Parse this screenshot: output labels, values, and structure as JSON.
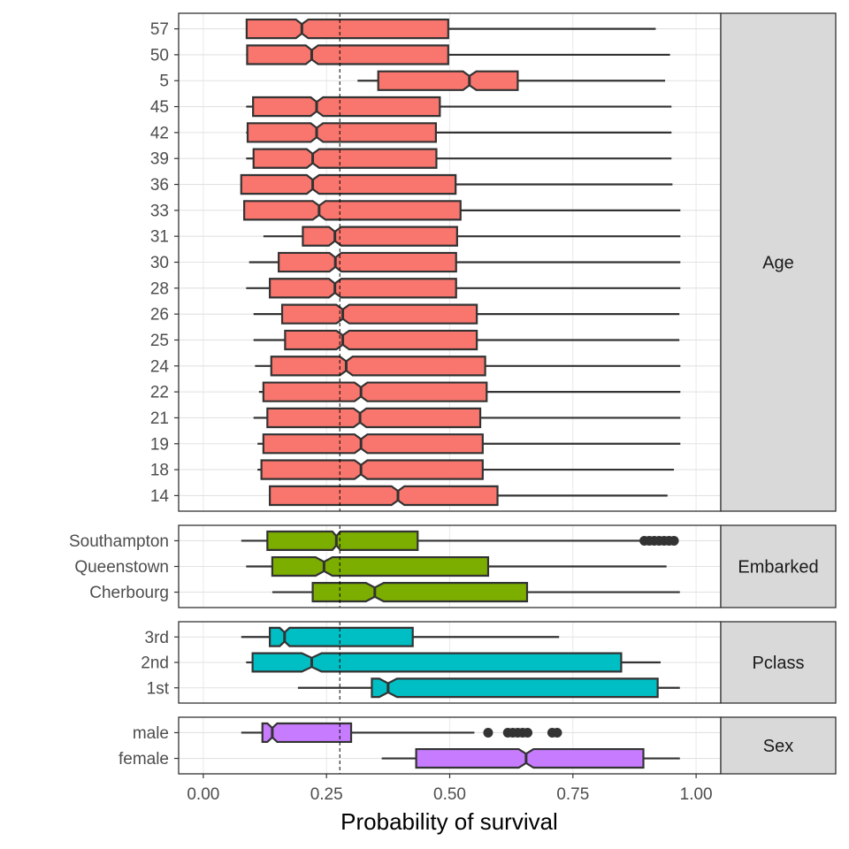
{
  "chart_data": {
    "type": "boxplot",
    "xlabel": "Probability of survival",
    "xlim": [
      -0.05,
      1.05
    ],
    "x_ticks": [
      0,
      0.25,
      0.5,
      0.75,
      1
    ],
    "x_tick_labels": [
      "0.00",
      "0.25",
      "0.50",
      "0.75",
      "1.00"
    ],
    "reference_line": 0.277,
    "grid": "major",
    "legend": "none",
    "notched": true,
    "facets": [
      {
        "label": "Age",
        "color": "#F8766D",
        "rows": [
          {
            "category": "57",
            "min": 0.088,
            "q1": 0.088,
            "median": 0.2,
            "q3": 0.497,
            "max": 0.918,
            "notch": [
              0.188,
              0.213
            ],
            "outliers": []
          },
          {
            "category": "50",
            "min": 0.087,
            "q1": 0.089,
            "median": 0.22,
            "q3": 0.497,
            "max": 0.947,
            "notch": [
              0.208,
              0.233
            ],
            "outliers": []
          },
          {
            "category": "5",
            "min": 0.313,
            "q1": 0.355,
            "median": 0.54,
            "q3": 0.638,
            "max": 0.937,
            "notch": [
              0.527,
              0.554
            ],
            "outliers": []
          },
          {
            "category": "45",
            "min": 0.087,
            "q1": 0.101,
            "median": 0.23,
            "q3": 0.48,
            "max": 0.95,
            "notch": [
              0.218,
              0.243
            ],
            "outliers": []
          },
          {
            "category": "42",
            "min": 0.087,
            "q1": 0.09,
            "median": 0.23,
            "q3": 0.472,
            "max": 0.95,
            "notch": [
              0.218,
              0.243
            ],
            "outliers": []
          },
          {
            "category": "39",
            "min": 0.087,
            "q1": 0.102,
            "median": 0.222,
            "q3": 0.473,
            "max": 0.95,
            "notch": [
              0.21,
              0.235
            ],
            "outliers": []
          },
          {
            "category": "36",
            "min": 0.077,
            "q1": 0.077,
            "median": 0.222,
            "q3": 0.512,
            "max": 0.952,
            "notch": [
              0.21,
              0.235
            ],
            "outliers": []
          },
          {
            "category": "33",
            "min": 0.083,
            "q1": 0.083,
            "median": 0.235,
            "q3": 0.522,
            "max": 0.968,
            "notch": [
              0.222,
              0.248
            ],
            "outliers": []
          },
          {
            "category": "31",
            "min": 0.122,
            "q1": 0.202,
            "median": 0.267,
            "q3": 0.515,
            "max": 0.968,
            "notch": [
              0.255,
              0.28
            ],
            "outliers": []
          },
          {
            "category": "30",
            "min": 0.093,
            "q1": 0.153,
            "median": 0.268,
            "q3": 0.513,
            "max": 0.968,
            "notch": [
              0.256,
              0.28
            ],
            "outliers": []
          },
          {
            "category": "28",
            "min": 0.087,
            "q1": 0.135,
            "median": 0.267,
            "q3": 0.513,
            "max": 0.968,
            "notch": [
              0.255,
              0.28
            ],
            "outliers": []
          },
          {
            "category": "26",
            "min": 0.102,
            "q1": 0.16,
            "median": 0.283,
            "q3": 0.555,
            "max": 0.966,
            "notch": [
              0.27,
              0.296
            ],
            "outliers": []
          },
          {
            "category": "25",
            "min": 0.102,
            "q1": 0.166,
            "median": 0.283,
            "q3": 0.555,
            "max": 0.966,
            "notch": [
              0.27,
              0.296
            ],
            "outliers": []
          },
          {
            "category": "24",
            "min": 0.105,
            "q1": 0.138,
            "median": 0.29,
            "q3": 0.572,
            "max": 0.968,
            "notch": [
              0.277,
              0.303
            ],
            "outliers": []
          },
          {
            "category": "22",
            "min": 0.113,
            "q1": 0.122,
            "median": 0.32,
            "q3": 0.575,
            "max": 0.968,
            "notch": [
              0.307,
              0.333
            ],
            "outliers": []
          },
          {
            "category": "21",
            "min": 0.102,
            "q1": 0.13,
            "median": 0.318,
            "q3": 0.562,
            "max": 0.968,
            "notch": [
              0.305,
              0.331
            ],
            "outliers": []
          },
          {
            "category": "19",
            "min": 0.11,
            "q1": 0.122,
            "median": 0.32,
            "q3": 0.567,
            "max": 0.968,
            "notch": [
              0.307,
              0.333
            ],
            "outliers": []
          },
          {
            "category": "18",
            "min": 0.11,
            "q1": 0.118,
            "median": 0.32,
            "q3": 0.567,
            "max": 0.955,
            "notch": [
              0.307,
              0.333
            ],
            "outliers": []
          },
          {
            "category": "14",
            "min": 0.135,
            "q1": 0.135,
            "median": 0.395,
            "q3": 0.597,
            "max": 0.942,
            "notch": [
              0.382,
              0.408
            ],
            "outliers": []
          }
        ]
      },
      {
        "label": "Embarked",
        "color": "#7CAE00",
        "rows": [
          {
            "category": "Southampton",
            "min": 0.077,
            "q1": 0.13,
            "median": 0.27,
            "q3": 0.435,
            "max": 0.892,
            "notch": [
              0.262,
              0.278
            ],
            "outliers": [
              0.895,
              0.905,
              0.915,
              0.925,
              0.935,
              0.945,
              0.955
            ]
          },
          {
            "category": "Queenstown",
            "min": 0.087,
            "q1": 0.14,
            "median": 0.245,
            "q3": 0.578,
            "max": 0.94,
            "notch": [
              0.228,
              0.262
            ],
            "outliers": []
          },
          {
            "category": "Cherbourg",
            "min": 0.14,
            "q1": 0.222,
            "median": 0.348,
            "q3": 0.657,
            "max": 0.967,
            "notch": [
              0.33,
              0.366
            ],
            "outliers": []
          }
        ]
      },
      {
        "label": "Pclass",
        "color": "#00BFC4",
        "rows": [
          {
            "category": "3rd",
            "min": 0.077,
            "q1": 0.135,
            "median": 0.165,
            "q3": 0.425,
            "max": 0.722,
            "notch": [
              0.155,
              0.175
            ],
            "outliers": []
          },
          {
            "category": "2nd",
            "min": 0.087,
            "q1": 0.1,
            "median": 0.22,
            "q3": 0.848,
            "max": 0.928,
            "notch": [
              0.2,
              0.24
            ],
            "outliers": []
          },
          {
            "category": "1st",
            "min": 0.192,
            "q1": 0.342,
            "median": 0.375,
            "q3": 0.922,
            "max": 0.967,
            "notch": [
              0.357,
              0.393
            ],
            "outliers": []
          }
        ]
      },
      {
        "label": "Sex",
        "color": "#C77CFF",
        "rows": [
          {
            "category": "male",
            "min": 0.077,
            "q1": 0.12,
            "median": 0.14,
            "q3": 0.3,
            "max": 0.55,
            "notch": [
              0.13,
              0.15
            ],
            "outliers": [
              0.578,
              0.618,
              0.628,
              0.638,
              0.648,
              0.658,
              0.708,
              0.718
            ]
          },
          {
            "category": "female",
            "min": 0.362,
            "q1": 0.432,
            "median": 0.655,
            "q3": 0.893,
            "max": 0.967,
            "notch": [
              0.64,
              0.67
            ],
            "outliers": []
          }
        ]
      }
    ]
  }
}
